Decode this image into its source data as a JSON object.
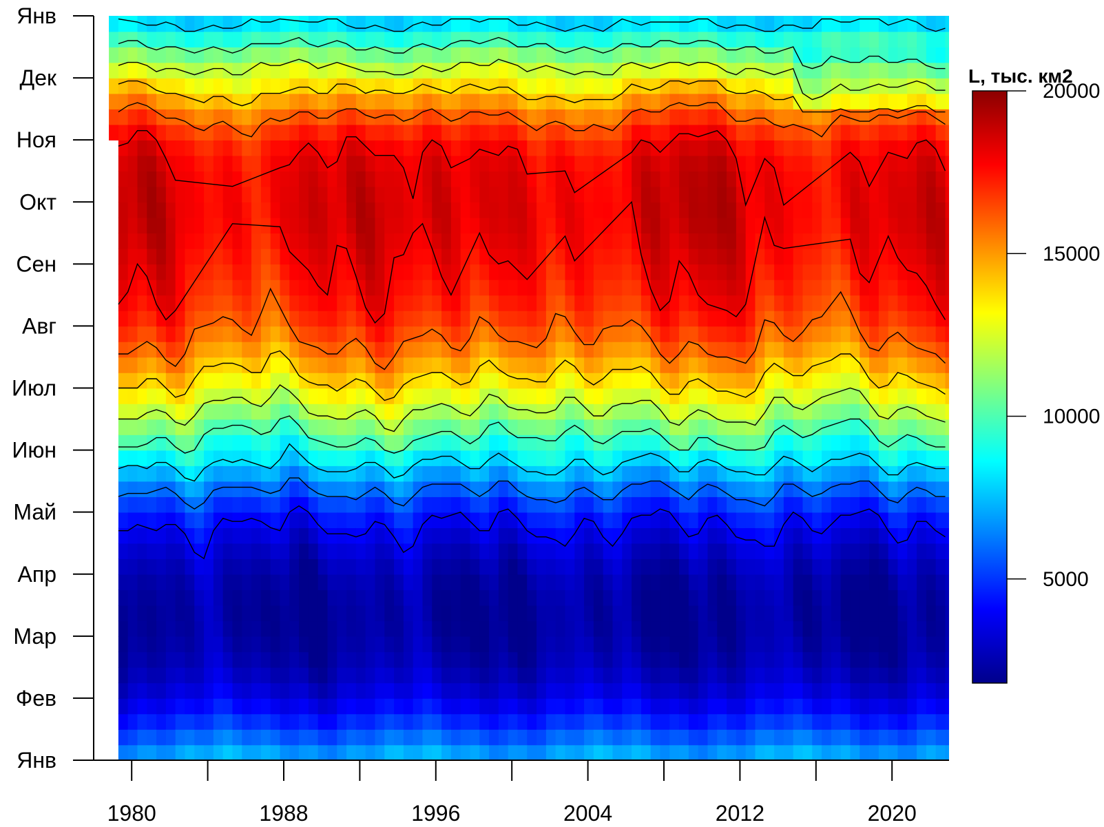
{
  "chart_data": {
    "type": "heatmap",
    "x_axis": {
      "tick_values": [
        1980,
        1984,
        1988,
        1992,
        1996,
        2000,
        2004,
        2008,
        2012,
        2016,
        2020
      ],
      "labels": [
        {
          "value": 1980,
          "text": "1980"
        },
        {
          "value": 1988,
          "text": "1988"
        },
        {
          "value": 1996,
          "text": "1996"
        },
        {
          "value": 2004,
          "text": "2004"
        },
        {
          "value": 2012,
          "text": "2012"
        },
        {
          "value": 2020,
          "text": "2020"
        }
      ],
      "range": [
        1978,
        2023
      ]
    },
    "y_axis": {
      "labels": [
        "Янв",
        "Фев",
        "Мар",
        "Апр",
        "Май",
        "Июн",
        "Июл",
        "Авг",
        "Сен",
        "Окт",
        "Ноя",
        "Дек",
        "Янв"
      ],
      "range": [
        0,
        12
      ]
    },
    "colorbar": {
      "title": "L, тыс. км2",
      "ticks": [
        {
          "value": 5000,
          "text": "5000"
        },
        {
          "value": 10000,
          "text": "10000"
        },
        {
          "value": 15000,
          "text": "15000"
        },
        {
          "value": 20000,
          "text": "20000"
        }
      ],
      "range": [
        1800,
        20000
      ],
      "palette": [
        "#00008b",
        "#0000ff",
        "#0080ff",
        "#00ffff",
        "#80ff80",
        "#ffff00",
        "#ff8000",
        "#ff0000",
        "#8b0000"
      ]
    },
    "climatology": {
      "months": [
        0,
        1,
        2,
        3,
        4,
        5,
        6,
        7,
        8,
        9,
        10,
        11,
        12
      ],
      "values": [
        7500,
        3600,
        2200,
        2500,
        4600,
        9000,
        13300,
        16500,
        17800,
        18300,
        17400,
        13000,
        7500
      ]
    },
    "contour_levels": [
      4000,
      6000,
      8000,
      10000,
      12000,
      14000,
      16000,
      18000
    ],
    "data_start_year": 1978.8,
    "data_start_month": 10
  }
}
